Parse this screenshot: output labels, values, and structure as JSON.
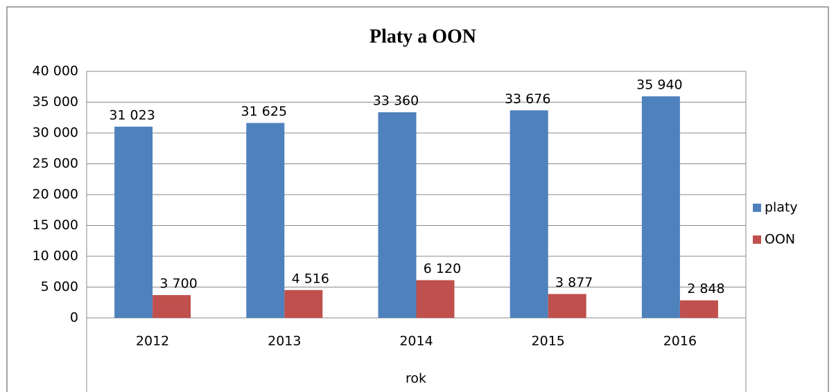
{
  "chart_data": {
    "type": "bar",
    "title": "Platy a OON",
    "x_label": "rok",
    "categories": [
      "2012",
      "2013",
      "2014",
      "2015",
      "2016"
    ],
    "series": [
      {
        "name": "platy",
        "color": "#4f81bd",
        "values": [
          31023,
          31625,
          33360,
          33676,
          35940
        ],
        "value_labels": [
          "31 023",
          "31 625",
          "33 360",
          "33 676",
          "35 940"
        ]
      },
      {
        "name": "OON",
        "color": "#c0504d",
        "values": [
          3700,
          4516,
          6120,
          3877,
          2848
        ],
        "value_labels": [
          "3 700",
          "4 516",
          "6 120",
          "3 877",
          "2 848"
        ]
      }
    ],
    "ylim": [
      0,
      40000
    ],
    "yticks": [
      0,
      {
        "value": 5000,
        "label": "5 000"
      },
      {
        "value": 10000,
        "label": "10 000"
      },
      {
        "value": 15000,
        "label": "15 000"
      },
      {
        "value": 20000,
        "label": "20 000"
      },
      {
        "value": 25000,
        "label": "25 000"
      },
      {
        "value": 30000,
        "label": "30 000"
      },
      {
        "value": 35000,
        "label": "35 000"
      },
      {
        "value": 40000,
        "label": "40 000"
      }
    ],
    "grid": true,
    "legend": "right"
  }
}
